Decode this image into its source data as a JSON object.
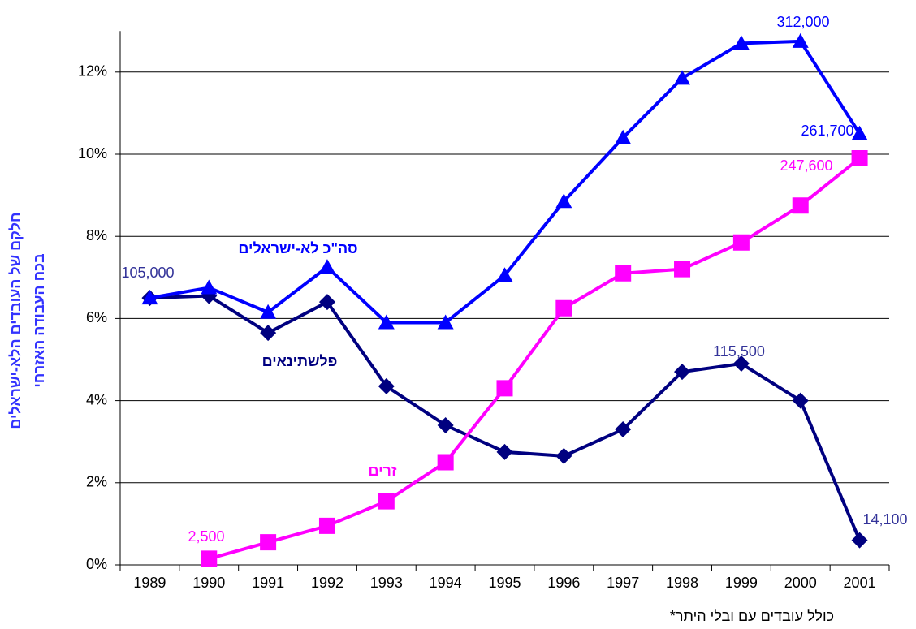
{
  "chart_data": {
    "type": "line",
    "y_label": [
      "חלקם של העובדים הלא-ישראלים",
      "בכח העבודה האזרחי"
    ],
    "footnote": "כולל עובדים עם ובלי היתר*",
    "categories": [
      "1989",
      "1990",
      "1991",
      "1992",
      "1993",
      "1994",
      "1995",
      "1996",
      "1997",
      "1998",
      "1999",
      "2000",
      "2001"
    ],
    "series": [
      {
        "name": "סה\"כ לא-ישראלים",
        "color": "#0000ff",
        "marker": "triangle",
        "values": [
          6.5,
          6.75,
          6.15,
          7.25,
          5.9,
          5.9,
          7.05,
          8.85,
          10.4,
          11.85,
          12.7,
          12.75,
          10.5
        ]
      },
      {
        "name": "פלשתינאים",
        "color": "#000080",
        "marker": "diamond",
        "values": [
          6.5,
          6.55,
          5.65,
          6.4,
          4.35,
          3.4,
          2.75,
          2.65,
          3.3,
          4.7,
          4.9,
          4.0,
          0.6
        ]
      },
      {
        "name": "זרים",
        "color": "#ff00ff",
        "marker": "square",
        "values": [
          null,
          0.15,
          0.55,
          0.95,
          1.55,
          2.5,
          4.3,
          6.25,
          7.1,
          7.2,
          7.85,
          8.75,
          9.9
        ]
      }
    ],
    "annotations": [
      {
        "text": "105,000",
        "color": "#333399"
      },
      {
        "text": "312,000",
        "color": "#0000ff"
      },
      {
        "text": "261,700",
        "color": "#0000ff"
      },
      {
        "text": "247,600",
        "color": "#ff00ff"
      },
      {
        "text": "115,500",
        "color": "#333399"
      },
      {
        "text": "14,100",
        "color": "#333399"
      },
      {
        "text": "2,500",
        "color": "#ff00ff"
      }
    ],
    "ylim": [
      0,
      13
    ],
    "yticks": [
      {
        "value": 0,
        "label": "0%"
      },
      {
        "value": 2,
        "label": "2%"
      },
      {
        "value": 4,
        "label": "4%"
      },
      {
        "value": 6,
        "label": "6%"
      },
      {
        "value": 8,
        "label": "8%"
      },
      {
        "value": 10,
        "label": "10%"
      },
      {
        "value": 12,
        "label": "12%"
      }
    ],
    "grid": true
  }
}
